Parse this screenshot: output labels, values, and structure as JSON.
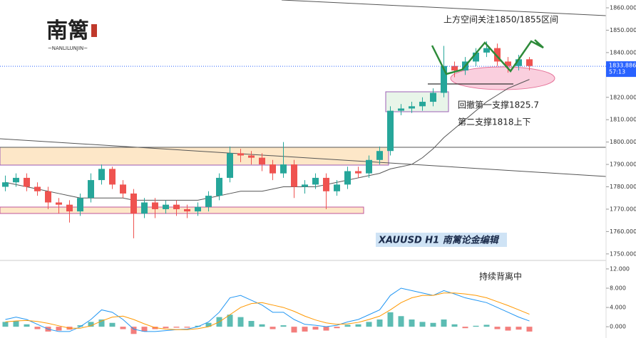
{
  "logo": {
    "title": "南篱",
    "subtitle": "~NANLILUNJIN~"
  },
  "chart_data": [
    {
      "type": "candlestick",
      "annotations": [
        "上方空间关注1850/1855区间",
        "回撤第一支撑1825.7",
        "第二支撑1818上下",
        "XAUUSD  H1  南篱论金编辑"
      ],
      "open": [
        1780,
        1782,
        1784,
        1780,
        1778,
        1773,
        1772,
        1769,
        1775,
        1783,
        1788,
        1781,
        1777,
        1768,
        1773,
        1770,
        1772,
        1770,
        1769,
        1771,
        1776,
        1784,
        1795,
        1794,
        1793,
        1790,
        1786,
        1790,
        1780,
        1781,
        1784,
        1778,
        1781,
        1787,
        1786,
        1792,
        1796,
        1814,
        1815,
        1816,
        1818,
        1822,
        1834,
        1832,
        1836,
        1840,
        1842,
        1836,
        1834,
        1837
      ],
      "high": [
        1785,
        1786,
        1786,
        1782,
        1780,
        1775,
        1774,
        1777,
        1786,
        1790,
        1789,
        1783,
        1779,
        1775,
        1775,
        1774,
        1774,
        1772,
        1773,
        1778,
        1786,
        1798,
        1797,
        1796,
        1795,
        1792,
        1800,
        1792,
        1783,
        1786,
        1786,
        1783,
        1789,
        1789,
        1794,
        1798,
        1816,
        1817,
        1818,
        1820,
        1824,
        1843,
        1836,
        1838,
        1842,
        1845,
        1844,
        1838,
        1839,
        1838
      ],
      "low": [
        1778,
        1780,
        1778,
        1776,
        1770,
        1768,
        1764,
        1767,
        1773,
        1781,
        1779,
        1775,
        1757,
        1766,
        1766,
        1768,
        1767,
        1766,
        1767,
        1769,
        1774,
        1782,
        1791,
        1790,
        1787,
        1783,
        1784,
        1775,
        1777,
        1779,
        1770,
        1776,
        1779,
        1784,
        1784,
        1790,
        1794,
        1812,
        1813,
        1814,
        1816,
        1820,
        1829,
        1830,
        1834,
        1838,
        1834,
        1831,
        1832,
        1832
      ],
      "close": [
        1782,
        1784,
        1780,
        1778,
        1773,
        1772,
        1769,
        1775,
        1783,
        1788,
        1781,
        1777,
        1768,
        1773,
        1770,
        1772,
        1770,
        1769,
        1771,
        1776,
        1784,
        1795,
        1794,
        1793,
        1790,
        1786,
        1790,
        1780,
        1781,
        1784,
        1778,
        1781,
        1787,
        1786,
        1792,
        1796,
        1814,
        1815,
        1816,
        1818,
        1822,
        1834,
        1832,
        1836,
        1840,
        1842,
        1836,
        1834,
        1837,
        1834
      ],
      "up_color": "#26a69a",
      "down_color": "#ef5350",
      "ma": {
        "color": "#555555",
        "values": [
          1782,
          1781,
          1780,
          1779,
          1778,
          1777,
          1776,
          1775,
          1775,
          1775,
          1775,
          1775,
          1774,
          1774,
          1774,
          1774,
          1774,
          1774,
          1774,
          1775,
          1776,
          1777,
          1778,
          1778,
          1778,
          1779,
          1780,
          1780,
          1780,
          1780,
          1781,
          1782,
          1783,
          1784,
          1785,
          1786,
          1788,
          1789,
          1790,
          1793,
          1797,
          1802,
          1806,
          1810,
          1814,
          1818,
          1821,
          1824,
          1826,
          1828
        ]
      },
      "ylim": [
        1747.4,
        1863.5
      ],
      "yticks": [
        {
          "value": 1750,
          "label": "1750.000"
        },
        {
          "value": 1760,
          "label": "1760.000"
        },
        {
          "value": 1770,
          "label": "1770.000"
        },
        {
          "value": 1780,
          "label": "1780.000"
        },
        {
          "value": 1790,
          "label": "1790.000"
        },
        {
          "value": 1800,
          "label": "1800.000"
        },
        {
          "value": 1810,
          "label": "1810.000"
        },
        {
          "value": 1820,
          "label": "1820.000"
        },
        {
          "value": 1830,
          "label": "1830.000"
        },
        {
          "value": 1840,
          "label": "1840.000"
        },
        {
          "value": 1850,
          "label": "1850.000"
        },
        {
          "value": 1860,
          "label": "1860.000"
        }
      ],
      "last_price": {
        "value": 1833.886,
        "time": "57:13",
        "color": "#2962ff"
      }
    },
    {
      "type": "macd",
      "annotation": "持续背离中",
      "histogram": [
        1,
        1.2,
        0.5,
        -0.5,
        -1,
        -0.8,
        -0.6,
        0.3,
        1,
        1.5,
        0.8,
        -0.5,
        -1.5,
        -1,
        -0.5,
        -0.3,
        -0.2,
        -0.2,
        0.2,
        0.8,
        2,
        2.5,
        2,
        1.2,
        0.5,
        -0.5,
        0.3,
        -1.2,
        -1,
        -0.6,
        -0.8,
        -0.3,
        0.4,
        0.5,
        1,
        1.5,
        3,
        2.2,
        1.5,
        1,
        0.8,
        1.5,
        0.5,
        -0.3,
        0.2,
        0.4,
        -0.5,
        -0.8,
        -0.6,
        -1
      ],
      "up_color": "#26a69a",
      "down_color": "#ef5350",
      "macd_line": {
        "color": "#2196f3",
        "values": [
          1.5,
          2,
          1.5,
          0.5,
          -0.5,
          -1,
          -1,
          0,
          1.5,
          3.5,
          3,
          1.5,
          -0.5,
          -1,
          -1,
          -0.8,
          -0.6,
          -0.5,
          0,
          1,
          3,
          6,
          6.5,
          5.5,
          4.5,
          3,
          3,
          1.5,
          0.5,
          0.3,
          0,
          0.3,
          1,
          1.5,
          2.5,
          3.5,
          6.5,
          8,
          7.5,
          7,
          6.5,
          7.5,
          6.8,
          6,
          5.5,
          5,
          4,
          3,
          2,
          1.2
        ]
      },
      "signal_line": {
        "color": "#ff9800",
        "values": [
          1,
          1.2,
          1.3,
          1.1,
          0.7,
          0.2,
          -0.3,
          -0.3,
          0.2,
          1.2,
          2,
          2.2,
          1.5,
          0.6,
          -0.2,
          -0.5,
          -0.6,
          -0.6,
          -0.4,
          0,
          1,
          2.5,
          4,
          4.8,
          5,
          4.5,
          4,
          3.2,
          2.2,
          1.4,
          0.8,
          0.5,
          0.6,
          0.9,
          1.5,
          2.2,
          3.5,
          5,
          6,
          6.5,
          6.5,
          7,
          7,
          6.8,
          6.5,
          6,
          5.2,
          4.4,
          3.5,
          2.6
        ]
      },
      "ylim": [
        -2.34,
        13.76
      ],
      "yticks": [
        {
          "value": 0,
          "label": "0.000"
        },
        {
          "value": 4,
          "label": "4.000"
        },
        {
          "value": 8,
          "label": "8.000"
        },
        {
          "value": 12,
          "label": "12.000"
        }
      ]
    }
  ]
}
